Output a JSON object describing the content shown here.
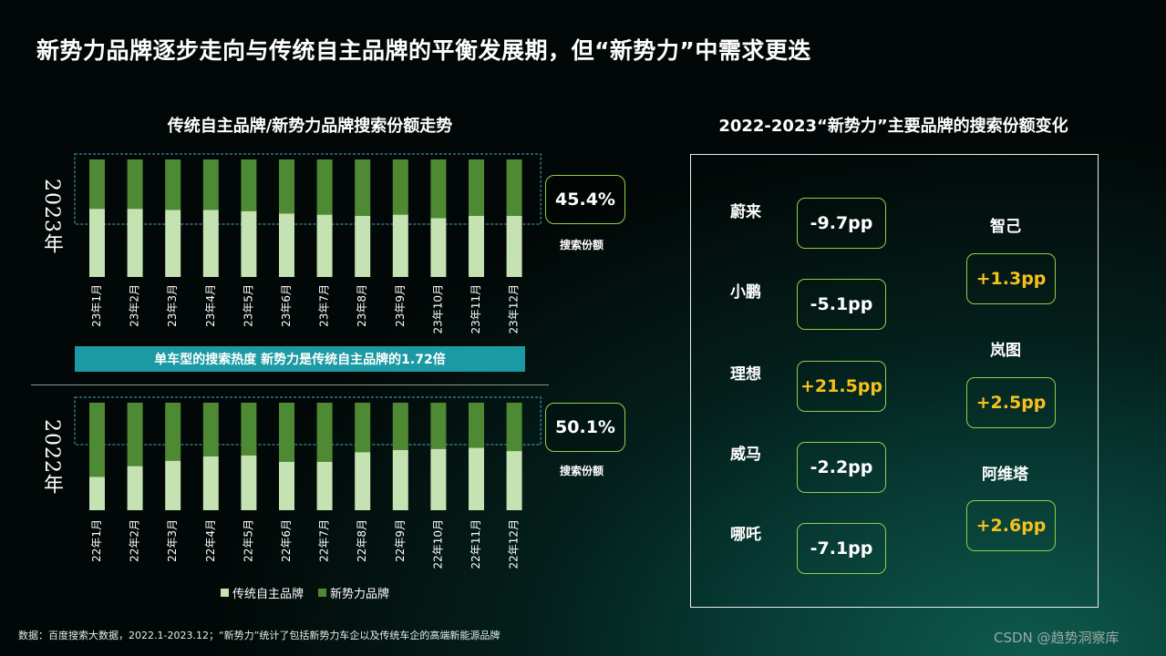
{
  "title": "新势力品牌逐步走向与传统自主品牌的平衡发展期，但“新势力”中需求更迭",
  "left_chart_title": "传统自主品牌/新势力品牌搜索份额走势",
  "right_chart_title": "2022-2023“新势力”主要品牌的搜索份额变化",
  "year_2023": "2023年",
  "year_2022": "2022年",
  "share_2023_value": "45.4%",
  "share_2022_value": "50.1%",
  "share_label": "搜索份额",
  "banner_text": "单车型的搜索热度 新势力是传统自主品牌的1.72倍",
  "legend": [
    "传统自主品牌",
    "新势力品牌"
  ],
  "colors": {
    "traditional": "#c5e2b2",
    "new_force": "#4e8a33",
    "accent": "#8fd04e",
    "positive": "#f7c11c"
  },
  "source": "数据：百度搜索大数据，2022.1-2023.12；“新势力”统计了包括新势力车企以及传统车企的高端新能源品牌",
  "watermark": "CSDN @趋势洞察库",
  "chart_data": [
    {
      "type": "bar",
      "stacked": true,
      "name": "2023",
      "categories": [
        "23年1月",
        "23年2月",
        "23年3月",
        "23年4月",
        "23年5月",
        "23年6月",
        "23年7月",
        "23年8月",
        "23年9月",
        "23年10月",
        "23年11月",
        "23年12月"
      ],
      "series": [
        {
          "name": "传统自主品牌",
          "values": [
            58,
            58,
            57,
            57,
            56,
            54,
            53,
            52,
            53,
            50,
            52,
            52
          ]
        },
        {
          "name": "新势力品牌",
          "values": [
            42,
            42,
            43,
            43,
            44,
            46,
            47,
            48,
            47,
            50,
            48,
            48
          ]
        }
      ],
      "ylim": [
        0,
        100
      ]
    },
    {
      "type": "bar",
      "stacked": true,
      "name": "2022",
      "categories": [
        "22年1月",
        "22年2月",
        "22年3月",
        "22年4月",
        "22年5月",
        "22年6月",
        "22年7月",
        "22年8月",
        "22年9月",
        "22年10月",
        "22年11月",
        "22年12月"
      ],
      "series": [
        {
          "name": "传统自主品牌",
          "values": [
            31,
            41,
            46,
            50,
            51,
            45,
            45,
            54,
            56,
            57,
            58,
            55
          ]
        },
        {
          "name": "新势力品牌",
          "values": [
            69,
            59,
            54,
            50,
            49,
            55,
            55,
            46,
            44,
            43,
            42,
            45
          ]
        }
      ],
      "ylim": [
        0,
        100
      ]
    }
  ],
  "brands_left": [
    {
      "name": "蔚来",
      "change": "-9.7pp"
    },
    {
      "name": "小鹏",
      "change": "-5.1pp"
    },
    {
      "name": "理想",
      "change": "+21.5pp"
    },
    {
      "name": "威马",
      "change": "-2.2pp"
    },
    {
      "name": "哪吒",
      "change": "-7.1pp"
    }
  ],
  "brands_right": [
    {
      "name": "智己",
      "change": "+1.3pp"
    },
    {
      "name": "岚图",
      "change": "+2.5pp"
    },
    {
      "name": "阿维塔",
      "change": "+2.6pp"
    }
  ]
}
